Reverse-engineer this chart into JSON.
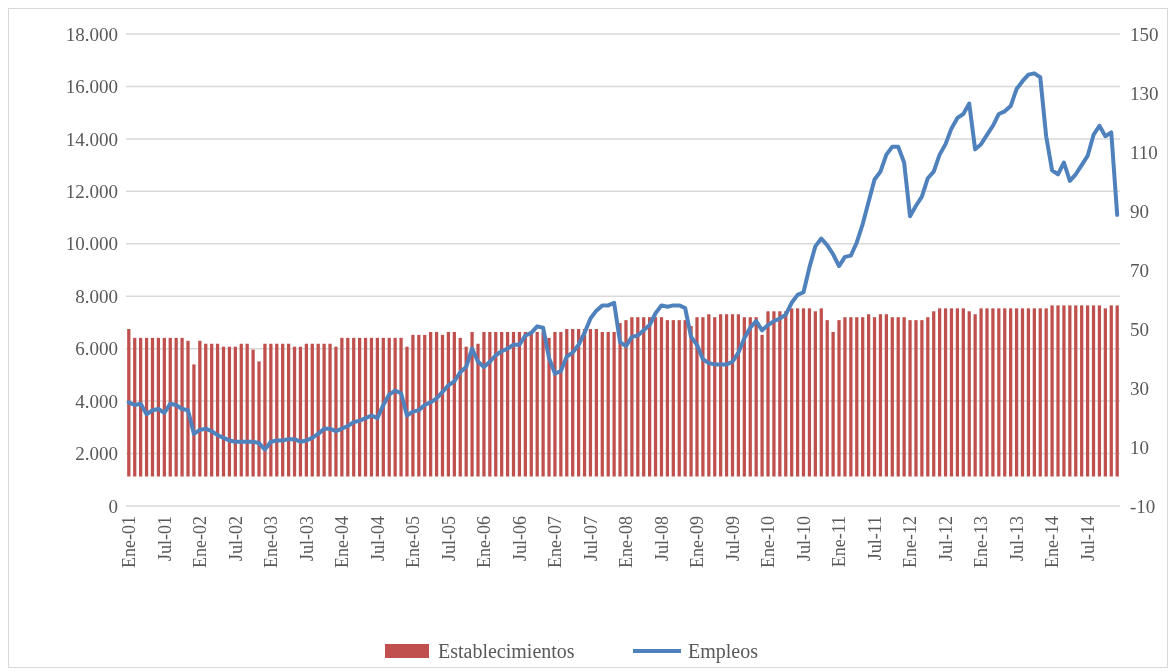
{
  "chart_data": {
    "type": "bar",
    "categories": [
      "Ene-01",
      null,
      null,
      null,
      null,
      null,
      "Jul-01",
      null,
      null,
      null,
      null,
      null,
      "Ene-02",
      null,
      null,
      null,
      null,
      null,
      "Jul-02",
      null,
      null,
      null,
      null,
      null,
      "Ene-03",
      null,
      null,
      null,
      null,
      null,
      "Jul-03",
      null,
      null,
      null,
      null,
      null,
      "Ene-04",
      null,
      null,
      null,
      null,
      null,
      "Jul-04",
      null,
      null,
      null,
      null,
      null,
      "Ene-05",
      null,
      null,
      null,
      null,
      null,
      "Jul-05",
      null,
      null,
      null,
      null,
      null,
      "Ene-06",
      null,
      null,
      null,
      null,
      null,
      "Jul-06",
      null,
      null,
      null,
      null,
      null,
      "Ene-07",
      null,
      null,
      null,
      null,
      null,
      "Jul-07",
      null,
      null,
      null,
      null,
      null,
      "Ene-08",
      null,
      null,
      null,
      null,
      null,
      "Jul-08",
      null,
      null,
      null,
      null,
      null,
      "Ene-09",
      null,
      null,
      null,
      null,
      null,
      "Jul-09",
      null,
      null,
      null,
      null,
      null,
      "Ene-10",
      null,
      null,
      null,
      null,
      null,
      "Jul-10",
      null,
      null,
      null,
      null,
      null,
      "Ene-11",
      null,
      null,
      null,
      null,
      null,
      "Jul-11",
      null,
      null,
      null,
      null,
      null,
      "Ene-12",
      null,
      null,
      null,
      null,
      null,
      "Jul-12",
      null,
      null,
      null,
      null,
      null,
      "Ene-13",
      null,
      null,
      null,
      null,
      null,
      "Jul-13",
      null,
      null,
      null,
      null,
      null,
      "Ene-14",
      null,
      null,
      null,
      null,
      null,
      "Jul-14",
      null,
      null,
      null,
      null,
      null
    ],
    "series": [
      {
        "name": "Establecimientos",
        "axis": "y2",
        "color": "#c0504d",
        "values": [
          50,
          47,
          47,
          47,
          47,
          47,
          47,
          47,
          47,
          47,
          46,
          38,
          46,
          45,
          45,
          45,
          44,
          44,
          44,
          45,
          45,
          43,
          39,
          45,
          45,
          45,
          45,
          45,
          44,
          44,
          45,
          45,
          45,
          45,
          45,
          44,
          47,
          47,
          47,
          47,
          47,
          47,
          47,
          47,
          47,
          47,
          47,
          44,
          48,
          48,
          48,
          49,
          49,
          48,
          49,
          49,
          47,
          44,
          49,
          45,
          49,
          49,
          49,
          49,
          49,
          49,
          49,
          49,
          49,
          49,
          49,
          47,
          49,
          49,
          50,
          50,
          50,
          50,
          50,
          50,
          49,
          49,
          49,
          52,
          53,
          54,
          54,
          54,
          54,
          54,
          54,
          53,
          53,
          53,
          53,
          51,
          54,
          54,
          55,
          54,
          55,
          55,
          55,
          55,
          54,
          54,
          54,
          48,
          56,
          56,
          56,
          56,
          57,
          57,
          57,
          57,
          56,
          57,
          53,
          49,
          53,
          54,
          54,
          54,
          54,
          55,
          54,
          55,
          55,
          54,
          54,
          54,
          53,
          53,
          53,
          54,
          56,
          57,
          57,
          57,
          57,
          57,
          56,
          55,
          57,
          57,
          57,
          57,
          57,
          57,
          57,
          57,
          57,
          57,
          57,
          57,
          58,
          58,
          58,
          58,
          58,
          58,
          58,
          58,
          58,
          57,
          58,
          58
        ]
      },
      {
        "name": "Empleos",
        "type": "line",
        "axis": "y",
        "color": "#4f81bd",
        "values": [
          3950,
          3850,
          3900,
          3500,
          3650,
          3700,
          3550,
          3900,
          3850,
          3700,
          3650,
          2750,
          2900,
          2950,
          2850,
          2700,
          2600,
          2500,
          2450,
          2450,
          2450,
          2450,
          2400,
          2150,
          2450,
          2500,
          2500,
          2550,
          2550,
          2450,
          2500,
          2600,
          2750,
          2950,
          2950,
          2850,
          2950,
          3050,
          3200,
          3250,
          3350,
          3450,
          3350,
          3850,
          4250,
          4400,
          4300,
          3450,
          3600,
          3650,
          3850,
          3950,
          4100,
          4350,
          4600,
          4750,
          5100,
          5300,
          6000,
          5500,
          5300,
          5500,
          5750,
          5900,
          6000,
          6150,
          6150,
          6500,
          6600,
          6850,
          6800,
          5650,
          5050,
          5150,
          5700,
          5850,
          6150,
          6600,
          7150,
          7450,
          7650,
          7650,
          7750,
          6250,
          6100,
          6450,
          6500,
          6700,
          6900,
          7350,
          7650,
          7600,
          7650,
          7650,
          7550,
          6450,
          6150,
          5600,
          5450,
          5400,
          5400,
          5400,
          5500,
          5850,
          6400,
          6800,
          7050,
          6700,
          6900,
          7050,
          7150,
          7300,
          7750,
          8050,
          8150,
          9100,
          9900,
          10200,
          9950,
          9600,
          9150,
          9500,
          9550,
          10050,
          10750,
          11600,
          12450,
          12750,
          13400,
          13700,
          13700,
          13100,
          11050,
          11450,
          11800,
          12500,
          12750,
          13400,
          13800,
          14400,
          14800,
          14950,
          15350,
          13600,
          13800,
          14150,
          14500,
          14950,
          15050,
          15250,
          15900,
          16200,
          16450,
          16500,
          16350,
          14100,
          12800,
          12650,
          13100,
          12400,
          12650,
          13000,
          13350,
          14150,
          14500,
          14100,
          14250,
          11100
        ]
      }
    ],
    "ylim": [
      0,
      18000
    ],
    "yticks": [
      0,
      {
        "value": 2000,
        "label": "2.000"
      },
      {
        "value": 4000,
        "label": "4.000"
      },
      {
        "value": 6000,
        "label": "6.000"
      },
      {
        "value": 8000,
        "label": "8.000"
      },
      {
        "value": 10000,
        "label": "10.000"
      },
      {
        "value": 12000,
        "label": "12.000"
      },
      {
        "value": 14000,
        "label": "14.000"
      },
      {
        "value": 16000,
        "label": "16.000"
      },
      {
        "value": 18000,
        "label": "18.000"
      }
    ],
    "y2lim": [
      -10,
      150
    ],
    "y2ticks": [
      -10,
      10,
      30,
      50,
      70,
      90,
      110,
      130,
      150
    ],
    "grid": "y",
    "legend": "bottom",
    "line_style": "solid",
    "marker": "none"
  }
}
